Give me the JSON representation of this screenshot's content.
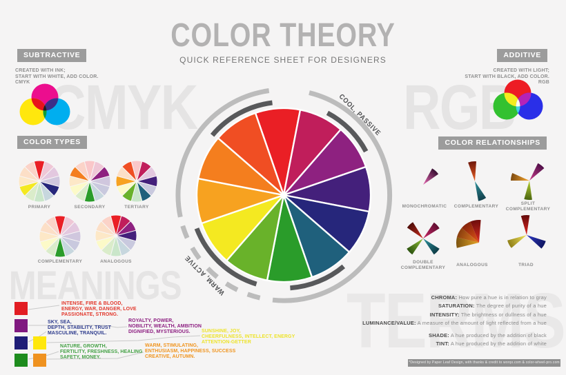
{
  "title": {
    "main": "COLOR THEORY",
    "subtitle": "QUICK REFERENCE SHEET FOR DESIGNERS"
  },
  "subtractive": {
    "label": "SUBTRACTIVE",
    "lines": [
      "CREATED WITH INK;",
      "START WITH WHITE, ADD COLOR.",
      "CMYK"
    ],
    "watermark": "CMYK",
    "venn": {
      "a": "#EC0E8E",
      "b": "#FFE70D",
      "c": "#00AEEF",
      "ab": "#E8131B",
      "ac": "#3B2F88",
      "bc": "#109E35",
      "abc": "#231A1E"
    }
  },
  "additive": {
    "label": "ADDITIVE",
    "lines": [
      "CREATED WITH LIGHT;",
      "START WITH BLACK, ADD COLOR.",
      "RGB"
    ],
    "watermark": "RGB",
    "venn": {
      "a": "#ED1C24",
      "b": "#33C130",
      "c": "#2A2FE8",
      "ab": "#F5EC1F",
      "ac": "#B423B8",
      "bc": "#3FD4E3",
      "abc": "#FDFBEA"
    }
  },
  "wheel": {
    "labels": {
      "cool": "COOL, PASSIVE",
      "warm": "WARM, ACTIVE"
    },
    "colors": [
      "#EA1F25",
      "#C01E5B",
      "#8E2180",
      "#44207B",
      "#26267B",
      "#1F607C",
      "#2A9C2A",
      "#69B22A",
      "#F4E921",
      "#F7A220",
      "#F47E1E",
      "#F04E23"
    ],
    "arc_light": "#bcbcbc",
    "arc_dark": "#58595b",
    "pale_mix": 0.75
  },
  "color_types": {
    "label": "COLOR TYPES",
    "items": [
      {
        "name": "PRIMARY",
        "highlight": [
          0,
          4,
          8
        ]
      },
      {
        "name": "SECONDARY",
        "highlight": [
          2,
          6,
          10
        ]
      },
      {
        "name": "TERTIARY",
        "highlight": [
          1,
          3,
          5,
          7,
          9,
          11
        ]
      },
      {
        "name": "COMPLEMENTARY",
        "highlight": [
          0,
          6
        ]
      },
      {
        "name": "ANALOGOUS",
        "highlight": [
          0,
          1,
          2,
          3
        ]
      }
    ]
  },
  "color_relationships": {
    "label": "COLOR RELATIONSHIPS",
    "items": [
      {
        "name": "MONOCHROMATIC",
        "name2": "",
        "wedges": [
          {
            "dir": 42,
            "r": 27,
            "spread": 26,
            "from": "#DB62AA",
            "to": "#370E31"
          }
        ]
      },
      {
        "name": "COMPLEMENTARY",
        "name2": "",
        "wedges": [
          {
            "dir": 352,
            "r": 29,
            "spread": 24,
            "from": "#E25B22",
            "to": "#6E180B"
          },
          {
            "dir": 158,
            "r": 29,
            "spread": 24,
            "from": "#2E8C96",
            "to": "#113F4B"
          }
        ]
      },
      {
        "name": "SPLIT",
        "name2": "COMPLEMENTARY",
        "wedges": [
          {
            "dir": 282,
            "r": 27,
            "spread": 24,
            "from": "#EFA22E",
            "to": "#7E4A10"
          },
          {
            "dir": 38,
            "r": 28,
            "spread": 24,
            "from": "#C23A88",
            "to": "#500F48"
          },
          {
            "dir": 184,
            "r": 28,
            "spread": 24,
            "from": "#AFC92F",
            "to": "#4A6410"
          }
        ]
      },
      {
        "name": "DOUBLE",
        "name2": "COMPLEMENTARY",
        "wedges": [
          {
            "dir": 316,
            "r": 28,
            "spread": 24,
            "from": "#C22B1C",
            "to": "#4E0C08"
          },
          {
            "dir": 46,
            "r": 28,
            "spread": 24,
            "from": "#C42664",
            "to": "#600D30"
          },
          {
            "dir": 226,
            "r": 28,
            "spread": 24,
            "from": "#8BBA34",
            "to": "#2C5310"
          },
          {
            "dir": 134,
            "r": 28,
            "spread": 24,
            "from": "#2B8D98",
            "to": "#0E3C46"
          }
        ]
      },
      {
        "name": "ANALOGOUS",
        "name2": "",
        "wedges": [
          {
            "dir": 270,
            "r": 33,
            "spread": 27,
            "from": "#DDA026",
            "to": "#7E5410"
          },
          {
            "dir": 297,
            "r": 33,
            "spread": 27,
            "from": "#E07A20",
            "to": "#8A3E0E"
          },
          {
            "dir": 324,
            "r": 33,
            "spread": 27,
            "from": "#DC5217",
            "to": "#86230A"
          },
          {
            "dir": 351,
            "r": 33,
            "spread": 27,
            "from": "#D32A20",
            "to": "#6E0D0B"
          }
        ]
      },
      {
        "name": "TRIAD",
        "name2": "",
        "wedges": [
          {
            "dir": 356,
            "r": 29,
            "spread": 25,
            "from": "#D6231F",
            "to": "#640B0B"
          },
          {
            "dir": 242,
            "r": 29,
            "spread": 25,
            "from": "#EBDC55",
            "to": "#8F7F18"
          },
          {
            "dir": 120,
            "r": 29,
            "spread": 25,
            "from": "#2C36BE",
            "to": "#0F1560"
          }
        ]
      }
    ]
  },
  "meanings": {
    "watermark": "MEANINGS",
    "items": [
      {
        "name": "red",
        "swatch": "#E21D23",
        "text_color": "#E2382C",
        "lines": [
          "INTENSE, FIRE & BLOOD,",
          "ENERGY, WAR, DANGER, LOVE",
          "PASSIONATE, STRONG."
        ]
      },
      {
        "name": "purple",
        "swatch": "#801980",
        "text_color": "#8C1D80",
        "lines": [
          "ROYALTY, POWER,",
          "NOBILITY, WEALTH, AMBITION",
          "DIGNIFIED, MYSTERIOUS."
        ]
      },
      {
        "name": "blue",
        "swatch": "#1F1D77",
        "text_color": "#2C3A8C",
        "lines": [
          "SKY, SEA,",
          "DEPTH, STABILITY, TRUST",
          "MASCULINE, TRANQUIL."
        ]
      },
      {
        "name": "green",
        "swatch": "#1E8C1E",
        "text_color": "#44A145",
        "lines": [
          "NATURE, GROWTH,",
          "FERTILITY, FRESHNESS, HEALING",
          "SAFETY, MONEY."
        ]
      },
      {
        "name": "yellow",
        "swatch": "#FFE70D",
        "text_color": "#EDE32B",
        "lines": [
          "SUNSHINE, JOY,",
          "CHEERFULNESS, INTELLECT, ENERGY",
          "ATTENTION-GETTER"
        ]
      },
      {
        "name": "orange",
        "swatch": "#EF9220",
        "text_color": "#F0941E",
        "lines": [
          "WARM, STIMULATING,",
          "ENTHUSIASM, HAPPINESS, SUCCESS",
          "CREATIVE, AUTUMN."
        ]
      }
    ]
  },
  "terms": {
    "watermark": "TERMS",
    "items": [
      {
        "term": "CHROMA:",
        "def": " How pure a hue is in relation to gray"
      },
      {
        "term": "SATURATION:",
        "def": " The degree of purity of a hue"
      },
      {
        "term": "INTENSITY:",
        "def": " The brightness or dullness of a hue"
      },
      {
        "term": "LUMINANCE/VALUE:",
        "def": " A measure of the amount of light reflected from a hue"
      },
      {
        "term": "SHADE:",
        "def": " A hue produced by the addition of black"
      },
      {
        "term": "TINT:",
        "def": " A hue produced by the addition of white"
      }
    ]
  },
  "credit": "*Designed by Paper Leaf Design, with thanks & credit to worqx.com & color-wheel-pro.com"
}
